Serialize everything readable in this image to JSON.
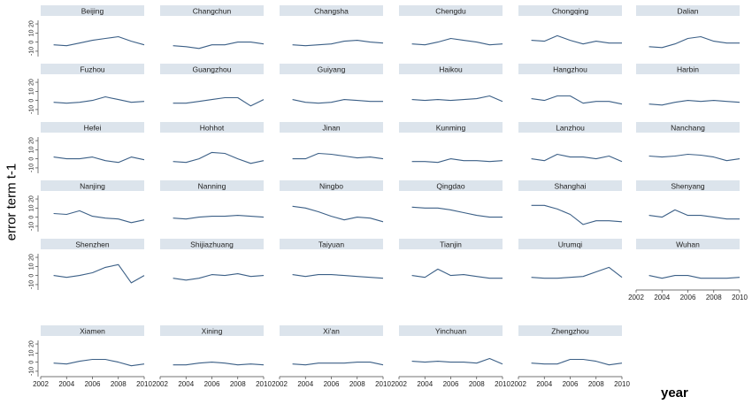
{
  "chart_data": {
    "type": "line",
    "layout": "small-multiples",
    "ylabel": "error term t-1",
    "xlabel": "year",
    "x": [
      2003,
      2004,
      2005,
      2006,
      2007,
      2008,
      2009,
      2010
    ],
    "xlim": [
      2002,
      2010
    ],
    "xticks": [
      2002,
      2004,
      2006,
      2008,
      2010
    ],
    "ylim": [
      -13,
      22
    ],
    "yticks": [
      20,
      10,
      0,
      -10
    ],
    "color": "#3b5f86",
    "strip_color": "#dce4ec",
    "panels": [
      {
        "name": "Beijing",
        "values": [
          -3,
          -4,
          -1,
          2,
          4,
          6,
          1,
          -3
        ]
      },
      {
        "name": "Changchun",
        "values": [
          -4,
          -5,
          -7,
          -3,
          -3,
          0,
          0,
          -2
        ]
      },
      {
        "name": "Changsha",
        "values": [
          -3,
          -4,
          -3,
          -2,
          1,
          2,
          0,
          -1
        ]
      },
      {
        "name": "Chengdu",
        "values": [
          -2,
          -3,
          0,
          4,
          2,
          0,
          -3,
          -2
        ]
      },
      {
        "name": "Chongqing",
        "values": [
          2,
          1,
          7,
          2,
          -2,
          1,
          -1,
          -1
        ]
      },
      {
        "name": "Dalian",
        "values": [
          -5,
          -6,
          -2,
          4,
          6,
          1,
          -1,
          -1
        ]
      },
      {
        "name": "Fuzhou",
        "values": [
          -2,
          -3,
          -2,
          0,
          4,
          1,
          -2,
          -1
        ]
      },
      {
        "name": "Guangzhou",
        "values": [
          -3,
          -3,
          -1,
          1,
          3,
          3,
          -6,
          1
        ]
      },
      {
        "name": "Guiyang",
        "values": [
          1,
          -2,
          -3,
          -2,
          1,
          0,
          -1,
          -1
        ]
      },
      {
        "name": "Haikou",
        "values": [
          1,
          0,
          1,
          0,
          1,
          2,
          5,
          -1
        ]
      },
      {
        "name": "Hangzhou",
        "values": [
          2,
          0,
          5,
          5,
          -3,
          -1,
          -1,
          -4
        ]
      },
      {
        "name": "Harbin",
        "values": [
          -4,
          -5,
          -2,
          0,
          -1,
          0,
          -1,
          -2
        ]
      },
      {
        "name": "Hefei",
        "values": [
          2,
          0,
          0,
          2,
          -2,
          -4,
          2,
          -1
        ]
      },
      {
        "name": "Hohhot",
        "values": [
          -3,
          -4,
          0,
          7,
          6,
          0,
          -5,
          -2
        ]
      },
      {
        "name": "Jinan",
        "values": [
          0,
          0,
          6,
          5,
          3,
          1,
          2,
          0
        ]
      },
      {
        "name": "Kunming",
        "values": [
          -3,
          -3,
          -4,
          0,
          -2,
          -2,
          -3,
          -2
        ]
      },
      {
        "name": "Lanzhou",
        "values": [
          0,
          -2,
          5,
          2,
          2,
          0,
          3,
          -3
        ]
      },
      {
        "name": "Nanchang",
        "values": [
          3,
          2,
          3,
          5,
          4,
          2,
          -2,
          0
        ]
      },
      {
        "name": "Nanjing",
        "values": [
          4,
          3,
          7,
          1,
          -1,
          -2,
          -6,
          -3
        ]
      },
      {
        "name": "Nanning",
        "values": [
          -1,
          -2,
          0,
          1,
          1,
          2,
          1,
          0
        ]
      },
      {
        "name": "Ningbo",
        "values": [
          12,
          10,
          6,
          1,
          -3,
          0,
          -1,
          -5
        ]
      },
      {
        "name": "Qingdao",
        "values": [
          11,
          10,
          10,
          8,
          5,
          2,
          0,
          0
        ]
      },
      {
        "name": "Shanghai",
        "values": [
          13,
          13,
          9,
          3,
          -8,
          -4,
          -4,
          -5
        ]
      },
      {
        "name": "Shenyang",
        "values": [
          2,
          0,
          8,
          2,
          2,
          0,
          -2,
          -2
        ]
      },
      {
        "name": "Shenzhen",
        "values": [
          0,
          -2,
          0,
          3,
          9,
          12,
          -8,
          0
        ]
      },
      {
        "name": "Shijiazhuang",
        "values": [
          -3,
          -5,
          -3,
          1,
          0,
          2,
          -1,
          0
        ]
      },
      {
        "name": "Taiyuan",
        "values": [
          1,
          -1,
          1,
          1,
          0,
          -1,
          -2,
          -3
        ]
      },
      {
        "name": "Tianjin",
        "values": [
          0,
          -2,
          7,
          0,
          1,
          -1,
          -3,
          -3
        ]
      },
      {
        "name": "Urumqi",
        "values": [
          -2,
          -3,
          -3,
          -2,
          -1,
          4,
          9,
          -2
        ]
      },
      {
        "name": "Wuhan",
        "values": [
          0,
          -3,
          0,
          0,
          -3,
          -3,
          -3,
          -2
        ]
      },
      {
        "name": "Xiamen",
        "values": [
          -1,
          -2,
          1,
          3,
          3,
          0,
          -4,
          -2
        ]
      },
      {
        "name": "Xining",
        "values": [
          -3,
          -3,
          -1,
          0,
          -1,
          -3,
          -2,
          -3
        ]
      },
      {
        "name": "Xi'an",
        "values": [
          -2,
          -3,
          -1,
          -1,
          -1,
          0,
          0,
          -3
        ]
      },
      {
        "name": "Yinchuan",
        "values": [
          1,
          0,
          1,
          0,
          0,
          -1,
          4,
          -2
        ]
      },
      {
        "name": "Zhengzhou",
        "values": [
          -1,
          -2,
          -2,
          3,
          3,
          1,
          -3,
          -1
        ]
      }
    ]
  }
}
